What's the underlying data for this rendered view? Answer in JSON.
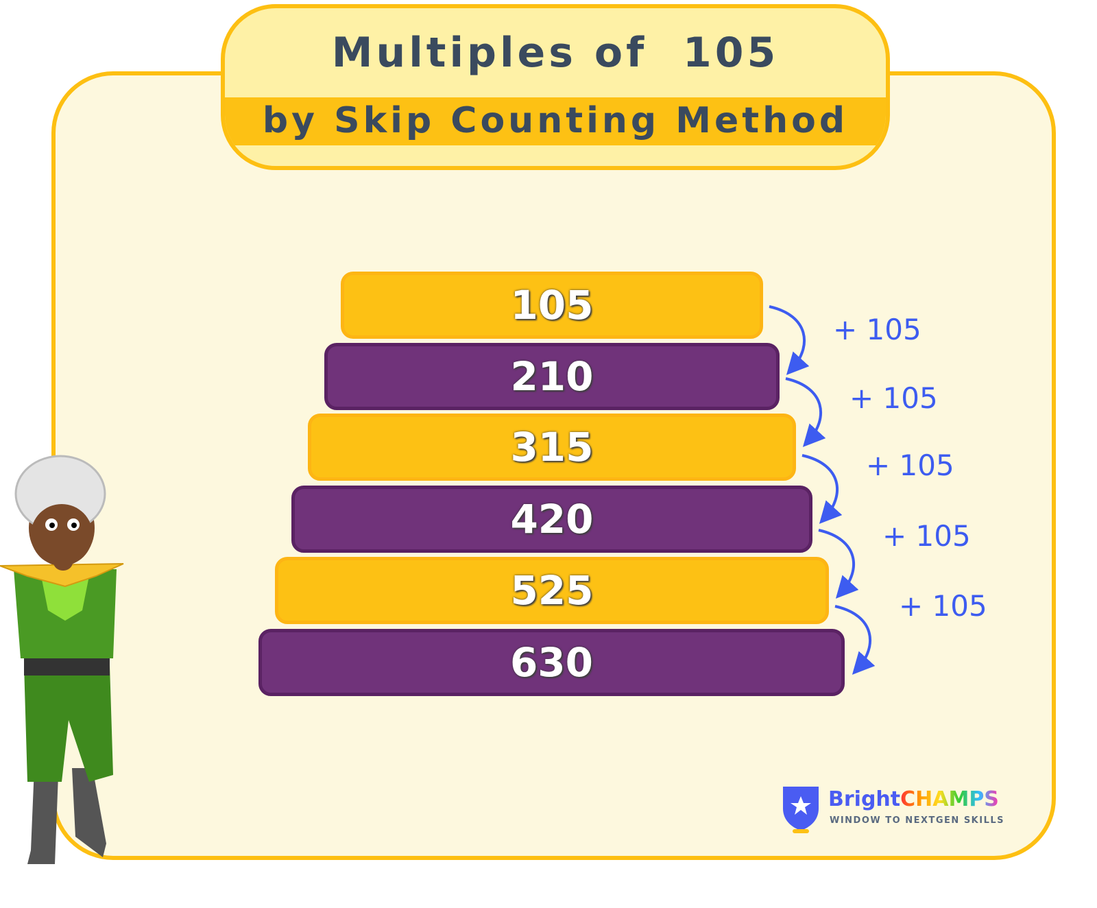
{
  "title": {
    "line1": "Multiples of  105",
    "line2": "by Skip Counting Method"
  },
  "multiples": [
    "105",
    "210",
    "315",
    "420",
    "525",
    "630"
  ],
  "step_label": "+ 105",
  "colors": {
    "yellow": "#fdc114",
    "purple": "#70337a",
    "arrow": "#3d5cf0",
    "border": "#fdbf12"
  },
  "logo": {
    "brand_part1": "Bright",
    "brand_part2": "CHAMPS",
    "tagline": "WINDOW TO NEXTGEN SKILLS",
    "icon": "shield-star-icon"
  }
}
